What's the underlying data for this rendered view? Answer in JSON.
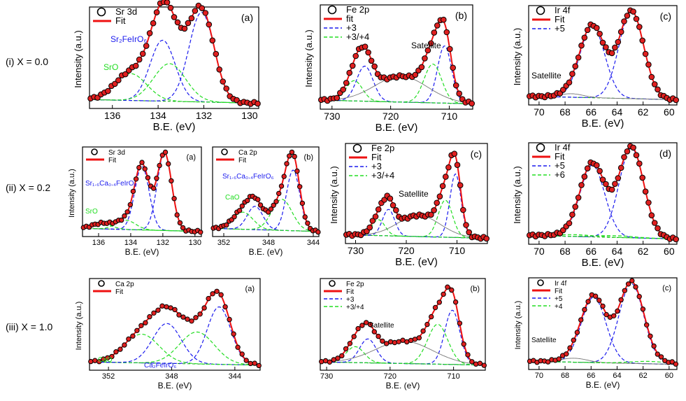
{
  "row_labels": [
    "(i)  X = 0.0",
    "(ii)  X = 0.2",
    "(iii)  X = 1.0"
  ],
  "colors": {
    "fit": "#ee1111",
    "comp3": "#1a1aee",
    "comp4": "#22dd22",
    "sat": "#777777",
    "marker_fill": "#e02020"
  },
  "chart_data": [
    {
      "id": "i-sr3d",
      "type": "line",
      "panel_label": "(a)",
      "ylabel": "Intensity (a.u.)",
      "xlabel": "B.E. (eV)",
      "xlim": [
        137,
        129.6
      ],
      "xticks": [
        136,
        134,
        132,
        130
      ],
      "legend": [
        {
          "marker": "circle",
          "text": "Sr 3d"
        },
        {
          "line": "fit",
          "text": "Fit"
        }
      ],
      "annotations": [
        {
          "text": "Sr₂FeIrO₆",
          "color": "comp3"
        },
        {
          "text": "SrO",
          "color": "comp4"
        }
      ],
      "peaks": [
        {
          "c": 132.1,
          "h": 1.0,
          "w": 0.55,
          "s": "comp3"
        },
        {
          "c": 133.8,
          "h": 0.68,
          "w": 0.55,
          "s": "comp3"
        },
        {
          "c": 133.5,
          "h": 0.42,
          "w": 0.7,
          "s": "comp4"
        },
        {
          "c": 135.2,
          "h": 0.3,
          "w": 0.7,
          "s": "comp4"
        }
      ]
    },
    {
      "id": "i-fe2p",
      "type": "line",
      "panel_label": "(b)",
      "ylabel": "Intensity (a.u.)",
      "xlabel": "B.E. (eV)",
      "xlim": [
        732,
        706
      ],
      "xticks": [
        730,
        720,
        710
      ],
      "legend": [
        {
          "marker": "circle",
          "text": "Fe 2p"
        },
        {
          "line": "fit",
          "text": "fit"
        },
        {
          "line": "comp3",
          "text": "+3"
        },
        {
          "line": "comp4",
          "text": "+3/+4"
        }
      ],
      "annotations": [
        {
          "text": "Satellite",
          "color": "black"
        }
      ],
      "peaks": [
        {
          "c": 710.8,
          "h": 0.62,
          "w": 1.2,
          "s": "comp3"
        },
        {
          "c": 712.8,
          "h": 0.42,
          "w": 1.5,
          "s": "comp4"
        },
        {
          "c": 724.4,
          "h": 0.38,
          "w": 1.4,
          "s": "comp3"
        },
        {
          "c": 726.2,
          "h": 0.22,
          "w": 1.4,
          "s": "comp4"
        },
        {
          "c": 718.2,
          "h": 0.28,
          "w": 4.5,
          "s": "sat"
        }
      ]
    },
    {
      "id": "i-ir4f",
      "type": "line",
      "panel_label": "(c)",
      "ylabel": "Intensity (a.u.)",
      "xlabel": "B.E. (eV)",
      "xlim": [
        70.8,
        59.4
      ],
      "xticks": [
        70,
        68,
        66,
        64,
        62,
        60
      ],
      "legend": [
        {
          "marker": "circle",
          "text": "Ir 4f"
        },
        {
          "line": "fit",
          "text": "Fit"
        },
        {
          "line": "comp3",
          "text": "+5"
        }
      ],
      "annotations": [
        {
          "text": "Satellite",
          "color": "black"
        }
      ],
      "peaks": [
        {
          "c": 62.9,
          "h": 1.0,
          "w": 0.95,
          "s": "comp3"
        },
        {
          "c": 65.9,
          "h": 0.82,
          "w": 0.95,
          "s": "comp3"
        },
        {
          "c": 67.5,
          "h": 0.04,
          "w": 0.9,
          "s": "sat"
        }
      ]
    },
    {
      "id": "ii-sr3d",
      "type": "line",
      "panel_label": "(a)",
      "ylabel": "Intensity (a.u.)",
      "xlabel": "B.E. (eV)",
      "xlim": [
        137,
        129.6
      ],
      "xticks": [
        136,
        134,
        132,
        130
      ],
      "legend": [
        {
          "marker": "circle",
          "text": "Sr 3d"
        },
        {
          "line": "fit",
          "text": "Fit"
        }
      ],
      "annotations": [
        {
          "text": "Sr₁.₆Ca₀.₄FeIrO₆",
          "color": "comp3"
        },
        {
          "text": "SrO",
          "color": "comp4"
        }
      ],
      "peaks": [
        {
          "c": 131.9,
          "h": 1.0,
          "w": 0.45,
          "s": "comp3"
        },
        {
          "c": 133.3,
          "h": 0.82,
          "w": 0.45,
          "s": "comp3"
        },
        {
          "c": 134.3,
          "h": 0.12,
          "w": 0.6,
          "s": "comp4"
        },
        {
          "c": 135.8,
          "h": 0.07,
          "w": 0.6,
          "s": "comp4"
        }
      ]
    },
    {
      "id": "ii-ca2p",
      "type": "line",
      "panel_label": "(b)",
      "ylabel": "",
      "xlabel": "B.E. (eV)",
      "xlim": [
        353,
        343.5
      ],
      "xticks": [
        352,
        348,
        344
      ],
      "legend": [
        {
          "marker": "circle",
          "text": "Ca 2p"
        },
        {
          "line": "fit",
          "text": "Fit"
        }
      ],
      "annotations": [
        {
          "text": "Sr₁.₆Ca₀.₄FeIrO₆",
          "color": "comp3"
        },
        {
          "text": "CaO",
          "color": "comp4"
        }
      ],
      "peaks": [
        {
          "c": 345.8,
          "h": 0.78,
          "w": 0.6,
          "s": "comp3"
        },
        {
          "c": 346.8,
          "h": 0.4,
          "w": 0.9,
          "s": "comp4"
        },
        {
          "c": 349.2,
          "h": 0.3,
          "w": 0.7,
          "s": "comp3"
        },
        {
          "c": 350.3,
          "h": 0.22,
          "w": 0.9,
          "s": "comp4"
        }
      ]
    },
    {
      "id": "ii-fe2p",
      "type": "line",
      "panel_label": "(c)",
      "ylabel": "Intensity (a.u.)",
      "xlabel": "B.E. (eV)",
      "xlim": [
        732,
        704
      ],
      "xticks": [
        730,
        720,
        710
      ],
      "legend": [
        {
          "marker": "circle",
          "text": "Fe 2p"
        },
        {
          "line": "fit",
          "text": "Fit"
        },
        {
          "line": "comp3",
          "text": "+3"
        },
        {
          "line": "comp4",
          "text": "+3/+4"
        }
      ],
      "annotations": [
        {
          "text": "Satellite",
          "color": "black"
        }
      ],
      "peaks": [
        {
          "c": 710.3,
          "h": 0.72,
          "w": 1.1,
          "s": "comp3"
        },
        {
          "c": 712.3,
          "h": 0.42,
          "w": 1.4,
          "s": "comp4"
        },
        {
          "c": 723.5,
          "h": 0.3,
          "w": 1.2,
          "s": "comp3"
        },
        {
          "c": 725.5,
          "h": 0.18,
          "w": 1.3,
          "s": "comp4"
        },
        {
          "c": 717.5,
          "h": 0.24,
          "w": 4.2,
          "s": "sat"
        }
      ]
    },
    {
      "id": "ii-ir4f",
      "type": "line",
      "panel_label": "(d)",
      "ylabel": "Intensity (a.u.)",
      "xlabel": "B.E. (eV)",
      "xlim": [
        70.8,
        59.4
      ],
      "xticks": [
        70,
        68,
        66,
        64,
        62,
        60
      ],
      "legend": [
        {
          "marker": "circle",
          "text": "Ir 4f"
        },
        {
          "line": "fit",
          "text": "Fit"
        },
        {
          "line": "comp3",
          "text": "+5"
        },
        {
          "line": "comp4",
          "text": "+6"
        }
      ],
      "annotations": [],
      "peaks": [
        {
          "c": 62.9,
          "h": 1.0,
          "w": 0.95,
          "s": "comp3"
        },
        {
          "c": 65.9,
          "h": 0.8,
          "w": 0.95,
          "s": "comp3"
        },
        {
          "c": 64.2,
          "h": 0.02,
          "w": 1.5,
          "s": "comp4"
        },
        {
          "c": 67.2,
          "h": 0.02,
          "w": 1.5,
          "s": "comp4"
        }
      ]
    },
    {
      "id": "iii-ca2p",
      "type": "line",
      "panel_label": "(a)",
      "ylabel": "Intensity (a.u.)",
      "xlabel": "B.E. (eV)",
      "xlim": [
        353.2,
        342.4
      ],
      "xticks": [
        352,
        348,
        344
      ],
      "legend": [
        {
          "marker": "circle",
          "text": "Ca 2p"
        },
        {
          "line": "fit",
          "text": "Fit"
        }
      ],
      "annotations": [
        {
          "text": "CaO",
          "color": "comp4"
        },
        {
          "text": "Ca₂FeIrO₆",
          "color": "comp3"
        }
      ],
      "peaks": [
        {
          "c": 345.0,
          "h": 0.72,
          "w": 0.75,
          "s": "comp3"
        },
        {
          "c": 346.4,
          "h": 0.4,
          "w": 1.1,
          "s": "comp4"
        },
        {
          "c": 348.3,
          "h": 0.5,
          "w": 0.9,
          "s": "comp3"
        },
        {
          "c": 349.9,
          "h": 0.36,
          "w": 1.1,
          "s": "comp4"
        }
      ]
    },
    {
      "id": "iii-fe2p",
      "type": "line",
      "panel_label": "(b)",
      "ylabel": "",
      "xlabel": "B.E. (eV)",
      "xlim": [
        731,
        705
      ],
      "xticks": [
        730,
        720,
        710
      ],
      "legend": [
        {
          "marker": "circle",
          "text": "Fe 2p"
        },
        {
          "line": "fit",
          "text": "Fit"
        },
        {
          "line": "comp3",
          "text": "+3"
        },
        {
          "line": "comp4",
          "text": "+3/+4"
        }
      ],
      "annotations": [
        {
          "text": "Satellite",
          "color": "black"
        }
      ],
      "peaks": [
        {
          "c": 710.2,
          "h": 0.68,
          "w": 1.2,
          "s": "comp3"
        },
        {
          "c": 712.5,
          "h": 0.5,
          "w": 1.6,
          "s": "comp4"
        },
        {
          "c": 723.5,
          "h": 0.3,
          "w": 1.3,
          "s": "comp3"
        },
        {
          "c": 725.5,
          "h": 0.2,
          "w": 1.4,
          "s": "comp4"
        },
        {
          "c": 717.8,
          "h": 0.28,
          "w": 4.5,
          "s": "sat"
        }
      ]
    },
    {
      "id": "iii-ir4f",
      "type": "line",
      "panel_label": "(c)",
      "ylabel": "Intensity (a.u.)",
      "xlabel": "B.E. (eV)",
      "xlim": [
        70.8,
        59.4
      ],
      "xticks": [
        70,
        68,
        66,
        64,
        62,
        60
      ],
      "legend": [
        {
          "marker": "circle",
          "text": "Ir 4f"
        },
        {
          "line": "fit",
          "text": "Fit"
        },
        {
          "line": "comp3",
          "text": "+5"
        },
        {
          "line": "comp4",
          "text": "+4"
        }
      ],
      "annotations": [
        {
          "text": "Satellite",
          "color": "black"
        }
      ],
      "peaks": [
        {
          "c": 62.9,
          "h": 1.0,
          "w": 0.95,
          "s": "comp3"
        },
        {
          "c": 65.8,
          "h": 0.82,
          "w": 0.95,
          "s": "comp3"
        },
        {
          "c": 67.3,
          "h": 0.05,
          "w": 1.0,
          "s": "sat"
        },
        {
          "c": 61.5,
          "h": 0.03,
          "w": 1.5,
          "s": "comp4"
        }
      ]
    }
  ]
}
